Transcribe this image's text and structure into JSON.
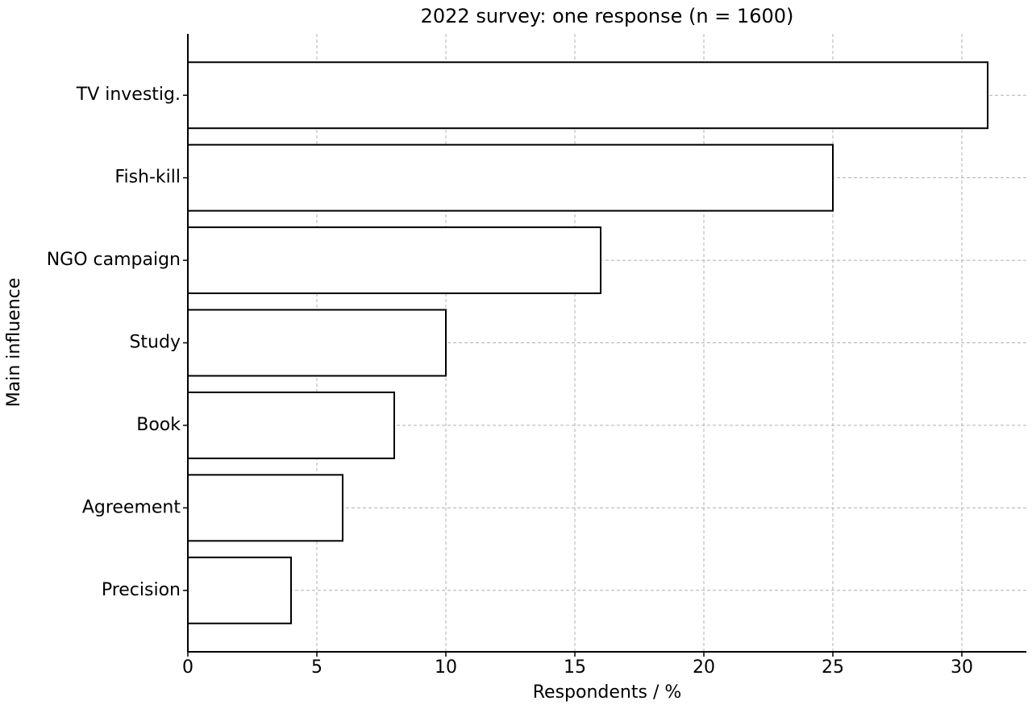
{
  "chart_data": {
    "type": "barh",
    "title": "2022 survey: one response (n = 1600)",
    "x_label": "Respondents / %",
    "y_label": "Main influence",
    "categories": [
      "TV investig.",
      "Fish-kill",
      "NGO campaign",
      "Study",
      "Book",
      "Agreement",
      "Precision"
    ],
    "values": [
      31,
      25,
      16,
      10,
      8,
      6,
      4
    ],
    "color": "#ffffff",
    "edge_color": "#000000",
    "xlim": [
      0,
      32.5
    ],
    "xticks": [
      0,
      5,
      10,
      15,
      20,
      25,
      30
    ],
    "grid": true
  }
}
